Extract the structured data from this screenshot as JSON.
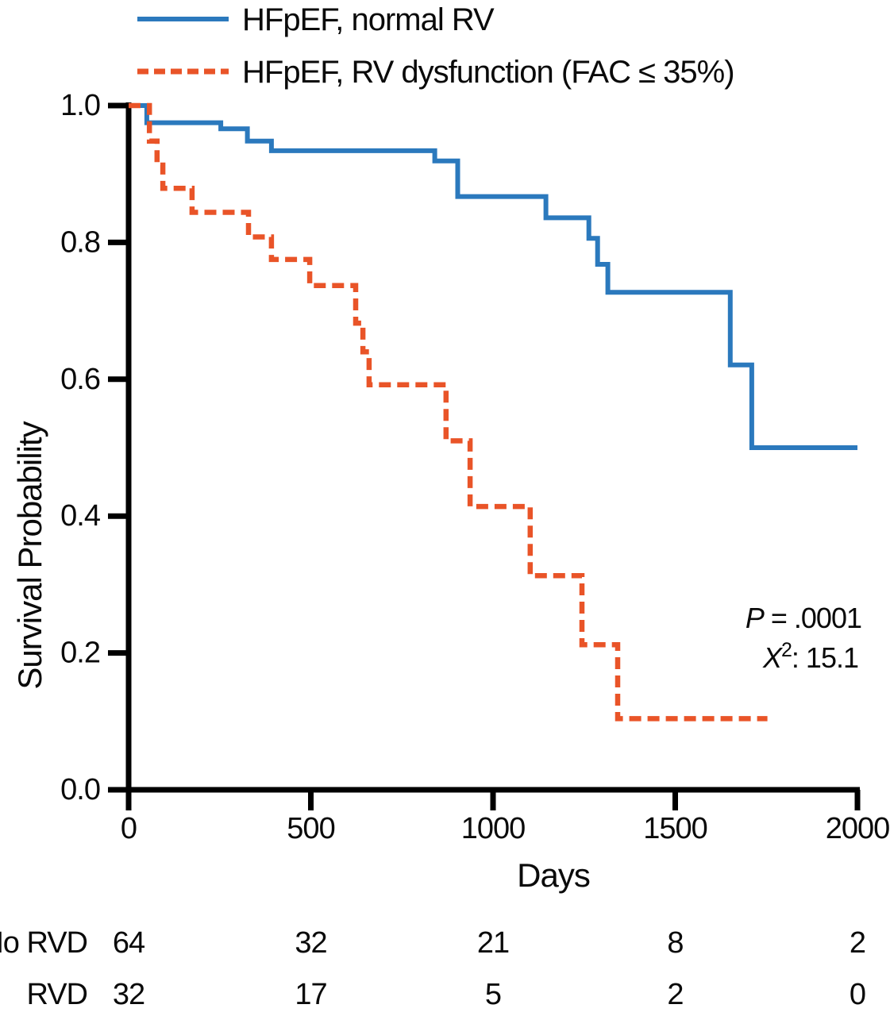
{
  "figure": {
    "background": "#ffffff",
    "axis_color": "#000000"
  },
  "legend": {
    "items": [
      {
        "label": "HFpEF, normal RV",
        "color": "#2B79BD",
        "line_style": "solid"
      },
      {
        "label": "HFpEF, RV dysfunction (FAC ≤ 35%)",
        "color": "#E95428",
        "line_style": "dashed"
      }
    ]
  },
  "annotations": {
    "p": {
      "label": "P",
      "value": "= .0001"
    },
    "chi": {
      "label": "X",
      "sup": "2",
      "value": ": 15.1"
    }
  },
  "axes": {
    "x": {
      "title": "Days",
      "ticks": [
        0,
        500,
        1000,
        1500,
        2000
      ],
      "tick_labels": [
        "0",
        "500",
        "1000",
        "1500",
        "2000"
      ],
      "min": 0,
      "max": 2000
    },
    "y": {
      "title": "Survival Probability",
      "ticks": [
        1.0,
        0.8,
        0.6,
        0.4,
        0.2,
        0.0
      ],
      "tick_labels": [
        "1.0",
        "0.8",
        "0.6",
        "0.4",
        "0.2",
        "0.0"
      ],
      "min": 0.0,
      "max": 1.0
    }
  },
  "risk_table": {
    "rows": [
      {
        "label": "No RVD",
        "values": [
          "64",
          "32",
          "21",
          "8",
          "2"
        ]
      },
      {
        "label": "RVD",
        "values": [
          "32",
          "17",
          "5",
          "2",
          "0"
        ]
      }
    ]
  },
  "chart_data": {
    "type": "line",
    "subtype": "kaplan-meier-step",
    "title": "",
    "xlabel": "Days",
    "ylabel": "Survival Probability",
    "xlim": [
      0,
      2000
    ],
    "ylim": [
      0.0,
      1.0
    ],
    "grid": false,
    "legend_position": "top-left",
    "series": [
      {
        "name": "HFpEF, normal RV",
        "color": "#2B79BD",
        "dash": "solid",
        "points": [
          [
            0,
            1.0
          ],
          [
            50,
            0.975
          ],
          [
            253,
            0.966
          ],
          [
            326,
            0.948
          ],
          [
            392,
            0.934
          ],
          [
            840,
            0.919
          ],
          [
            903,
            0.867
          ],
          [
            1145,
            0.836
          ],
          [
            1263,
            0.806
          ],
          [
            1287,
            0.768
          ],
          [
            1315,
            0.727
          ],
          [
            1651,
            0.621
          ],
          [
            1710,
            0.5
          ],
          [
            2000,
            0.5
          ]
        ]
      },
      {
        "name": "HFpEF, RV dysfunction (FAC ≤ 35%)",
        "color": "#E95428",
        "dash": "dashed",
        "points": [
          [
            0,
            1.0
          ],
          [
            57,
            0.948
          ],
          [
            78,
            0.913
          ],
          [
            94,
            0.879
          ],
          [
            174,
            0.844
          ],
          [
            329,
            0.808
          ],
          [
            392,
            0.775
          ],
          [
            497,
            0.737
          ],
          [
            623,
            0.682
          ],
          [
            643,
            0.64
          ],
          [
            660,
            0.592
          ],
          [
            871,
            0.51
          ],
          [
            937,
            0.414
          ],
          [
            1102,
            0.313
          ],
          [
            1244,
            0.212
          ],
          [
            1342,
            0.104
          ],
          [
            1753,
            0.104
          ]
        ]
      }
    ],
    "stats": {
      "p_value": ".0001",
      "chi_square": "15.1"
    },
    "numbers_at_risk": {
      "times": [
        0,
        500,
        1000,
        1500,
        2000
      ],
      "No RVD": [
        64,
        32,
        21,
        8,
        2
      ],
      "RVD": [
        32,
        17,
        5,
        2,
        0
      ]
    }
  }
}
